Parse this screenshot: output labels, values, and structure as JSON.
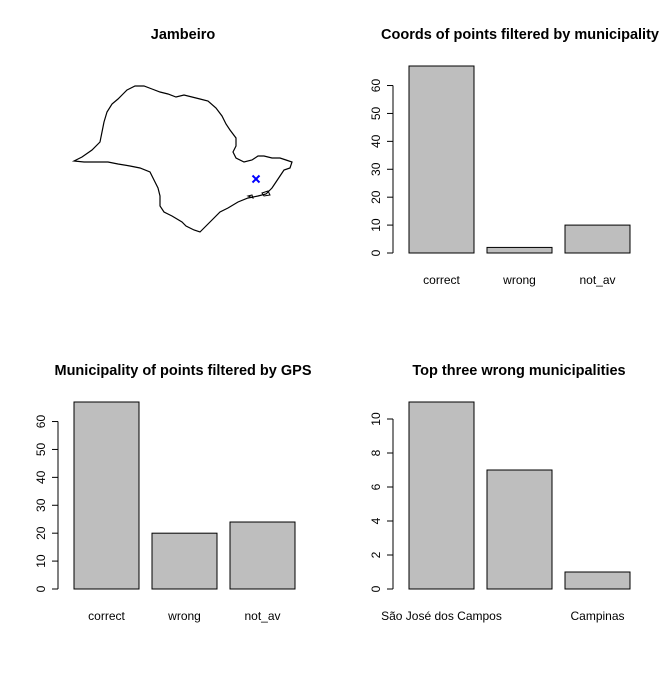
{
  "chart_data": [
    {
      "type": "map",
      "title": "Jambeiro",
      "marker": {
        "symbol": "x",
        "color": "#0000ff"
      }
    },
    {
      "type": "bar",
      "title": "Coords of points filtered by municipality",
      "categories": [
        "correct",
        "wrong",
        "not_av"
      ],
      "values": [
        67,
        2,
        10
      ],
      "yticks": [
        0,
        10,
        20,
        30,
        40,
        50,
        60
      ],
      "ylim": [
        0,
        67
      ],
      "bar_color": "#bebebe"
    },
    {
      "type": "bar",
      "title": "Municipality of points filtered by GPS",
      "categories": [
        "correct",
        "wrong",
        "not_av"
      ],
      "values": [
        67,
        20,
        24
      ],
      "yticks": [
        0,
        10,
        20,
        30,
        40,
        50,
        60
      ],
      "ylim": [
        0,
        67
      ],
      "bar_color": "#bebebe"
    },
    {
      "type": "bar",
      "title": "Top three wrong municipalities",
      "categories": [
        "São José dos Campos",
        "",
        "Campinas"
      ],
      "values": [
        11,
        7,
        1
      ],
      "yticks": [
        0,
        2,
        4,
        6,
        8,
        10
      ],
      "ylim": [
        0,
        11
      ],
      "bar_color": "#bebebe"
    }
  ]
}
